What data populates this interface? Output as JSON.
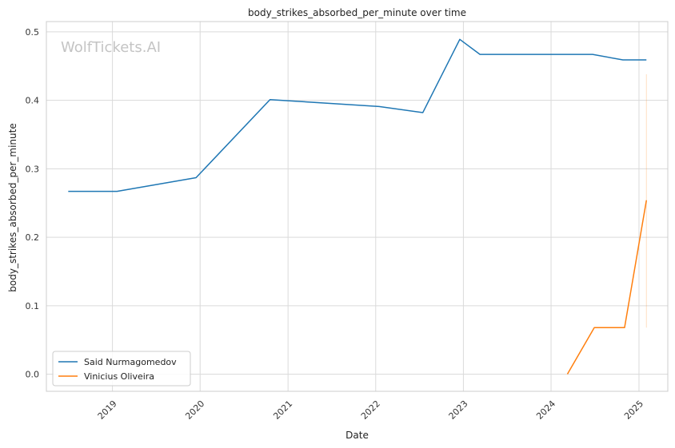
{
  "chart_data": {
    "type": "line",
    "title": "body_strikes_absorbed_per_minute over time",
    "xlabel": "Date",
    "ylabel": "body_strikes_absorbed_per_minute",
    "watermark": "WolfTickets.AI",
    "xlim": [
      "2018-04-01",
      "2025-05-01"
    ],
    "ylim": [
      -0.025,
      0.515
    ],
    "x_ticks": [
      "2019-01-01",
      "2020-01-01",
      "2021-01-01",
      "2022-01-01",
      "2023-01-01",
      "2024-01-01",
      "2025-01-01"
    ],
    "x_tick_labels": [
      "2019",
      "2020",
      "2021",
      "2022",
      "2023",
      "2024",
      "2025"
    ],
    "y_ticks": [
      0.0,
      0.1,
      0.2,
      0.3,
      0.4,
      0.5
    ],
    "y_tick_labels": [
      "0.0",
      "0.1",
      "0.2",
      "0.3",
      "0.4",
      "0.5"
    ],
    "grid": true,
    "legend_position": "lower-left",
    "series": [
      {
        "name": "Said Nurmagomedov",
        "color": "#1f77b4",
        "points": [
          {
            "x": "2018-07-01",
            "y": 0.267
          },
          {
            "x": "2019-01-20",
            "y": 0.267
          },
          {
            "x": "2019-12-15",
            "y": 0.287
          },
          {
            "x": "2020-10-18",
            "y": 0.401
          },
          {
            "x": "2022-01-15",
            "y": 0.391
          },
          {
            "x": "2022-07-16",
            "y": 0.382
          },
          {
            "x": "2022-12-17",
            "y": 0.489
          },
          {
            "x": "2023-03-11",
            "y": 0.467
          },
          {
            "x": "2024-06-22",
            "y": 0.467
          },
          {
            "x": "2024-10-26",
            "y": 0.459
          },
          {
            "x": "2025-02-01",
            "y": 0.459
          }
        ]
      },
      {
        "name": "Vinicius Oliveira",
        "color": "#ff7f0e",
        "points": [
          {
            "x": "2024-03-09",
            "y": 0.0
          },
          {
            "x": "2024-06-29",
            "y": 0.068
          },
          {
            "x": "2024-11-02",
            "y": 0.068
          },
          {
            "x": "2025-02-01",
            "y": 0.254
          }
        ],
        "band": {
          "x": "2025-02-01",
          "y_low": 0.068,
          "y_high": 0.438
        }
      }
    ]
  }
}
